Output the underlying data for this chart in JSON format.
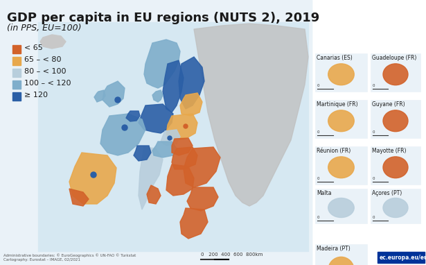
{
  "title": "GDP per capita in EU regions (NUTS 2), 2019",
  "subtitle": "(in PPS, EU=100)",
  "legend_labels": [
    "< 65",
    "65 – < 80",
    "80 – < 100",
    "100 – < 120",
    "≥ 120"
  ],
  "legend_colors": [
    "#D2622A",
    "#E8A84C",
    "#B8CEDC",
    "#7FAECB",
    "#2B5FA6"
  ],
  "background_color": "#FFFFFF",
  "map_bg_color": "#D8D8D8",
  "sea_color": "#E8F0F8",
  "border_color": "#FFFFFF",
  "footer_text": "ec.europa.eu/eurostat",
  "source_text": "Administrative boundaries: © EuroGeographics © UN-FAO © Turkstat\nCartography: Eurostat – IMAGE, 02/2021",
  "inset_labels": [
    "Canarias (ES)",
    "Guadeloupe (FR)",
    "Martinique (FR)",
    "Guyane (FR)",
    "Réunion (FR)",
    "Mayotte (FR)",
    "Malta",
    "Açores (PT)",
    "Madeira (PT)"
  ],
  "title_fontsize": 13,
  "subtitle_fontsize": 9,
  "legend_fontsize": 8
}
